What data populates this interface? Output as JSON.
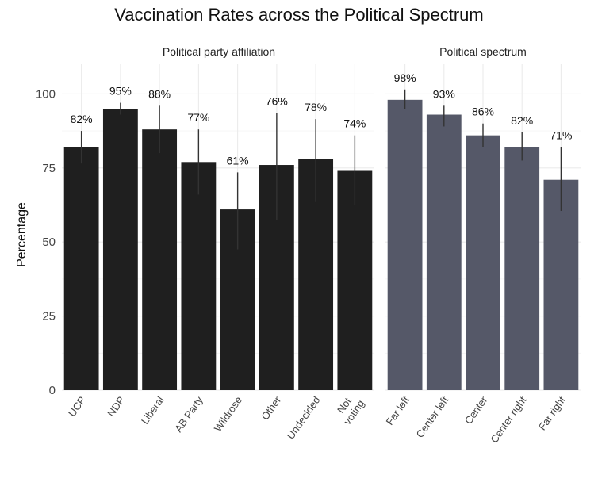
{
  "title": "Vaccination Rates across the Political Spectrum",
  "colors": {
    "party_bar": "#1f1f1f",
    "spectrum_bar": "#555868",
    "error_bar": "#333333"
  },
  "chart_data": {
    "type": "bar",
    "title": "Vaccination Rates across the Political Spectrum",
    "ylabel": "Percentage",
    "xlabel": "",
    "ylim": [
      0,
      110
    ],
    "yticks": [
      0,
      25,
      50,
      75,
      100
    ],
    "grid": true,
    "facets": [
      {
        "name": "Political party affiliation",
        "color": "#1f1f1f",
        "categories": [
          "UCP",
          "NDP",
          "Liberal",
          "AB Party",
          "Wildrose",
          "Other",
          "Undecided",
          "Not\nvoting"
        ],
        "values": [
          82,
          95,
          88,
          77,
          61,
          76,
          78,
          74
        ],
        "labels": [
          "82%",
          "95%",
          "88%",
          "77%",
          "61%",
          "76%",
          "78%",
          "74%"
        ],
        "error_low": [
          76.5,
          93,
          80,
          66,
          47.5,
          57.5,
          63.5,
          62.5
        ],
        "error_high": [
          87.5,
          97,
          96,
          88,
          73.5,
          93.5,
          91.5,
          86
        ]
      },
      {
        "name": "Political spectrum",
        "color": "#555868",
        "categories": [
          "Far left",
          "Center left",
          "Center",
          "Center right",
          "Far right"
        ],
        "values": [
          98,
          93,
          86,
          82,
          71
        ],
        "labels": [
          "98%",
          "93%",
          "86%",
          "82%",
          "71%"
        ],
        "error_low": [
          95,
          89,
          82,
          77.5,
          60.5
        ],
        "error_high": [
          101.5,
          96,
          90,
          87,
          82
        ]
      }
    ]
  }
}
